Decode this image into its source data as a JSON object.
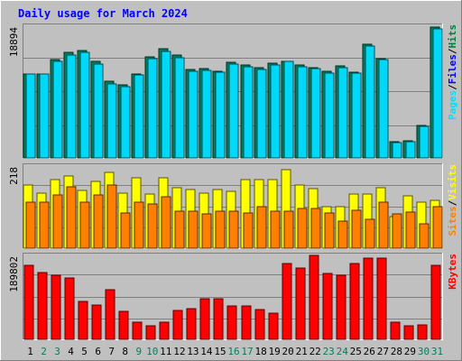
{
  "chart_data": {
    "type": "bar",
    "title": "Daily usage for March 2024",
    "categories": [
      "1",
      "2",
      "3",
      "4",
      "5",
      "6",
      "7",
      "8",
      "9",
      "10",
      "11",
      "12",
      "13",
      "14",
      "15",
      "16",
      "17",
      "18",
      "19",
      "20",
      "21",
      "22",
      "23",
      "24",
      "25",
      "26",
      "27",
      "28",
      "29",
      "30",
      "31"
    ],
    "weekend_days": [
      "2",
      "3",
      "9",
      "10",
      "16",
      "17",
      "23",
      "24",
      "30",
      "31"
    ],
    "panels": [
      {
        "name": "hits-files-pages",
        "ymax_label": "18894",
        "ymax": 18894,
        "legend": [
          "Pages",
          "Files",
          "Hits"
        ],
        "legend_separator": "/",
        "legend_colors": [
          "#00e0ff",
          "#0000ff",
          "#008040"
        ],
        "series": [
          {
            "name": "Hits",
            "color": "#00805c",
            "values": [
              12000,
              12000,
              14000,
              15000,
              15300,
              13700,
              10900,
              10400,
              11900,
              14400,
              15500,
              14600,
              12600,
              12700,
              12400,
              13600,
              13200,
              12800,
              13500,
              13800,
              13200,
              12800,
              12300,
              13100,
              12200,
              16200,
              14200,
              2300,
              2400,
              4600,
              18600
            ]
          },
          {
            "name": "Files",
            "color": "#00d8f8",
            "values": [
              11900,
              11900,
              13800,
              14700,
              15000,
              13400,
              10500,
              10100,
              11800,
              14100,
              15200,
              14300,
              12300,
              12500,
              12200,
              13400,
              13000,
              12600,
              13300,
              13700,
              13000,
              12700,
              12100,
              12900,
              12100,
              16000,
              14000,
              2200,
              2300,
              4500,
              18400
            ]
          }
        ]
      },
      {
        "name": "visits-sites",
        "ymax_label": "218",
        "ymax": 218,
        "legend": [
          "Sites",
          "Visits"
        ],
        "legend_separator": "/",
        "legend_colors": [
          "#ff8000",
          "#ffff00"
        ],
        "series": [
          {
            "name": "Visits",
            "color": "#ffff00",
            "values": [
              165,
              145,
              180,
              190,
              152,
              175,
              200,
              145,
              185,
              143,
              185,
              158,
              154,
              145,
              154,
              150,
              180,
              180,
              181,
              205,
              167,
              157,
              110,
              110,
              143,
              143,
              158,
              83,
              138,
              120,
              126
            ]
          },
          {
            "name": "Sites",
            "color": "#ff8000",
            "values": [
              122,
              120,
              140,
              162,
              122,
              140,
              165,
              93,
              120,
              115,
              135,
              97,
              97,
              90,
              97,
              97,
              92,
              110,
              97,
              97,
              105,
              105,
              92,
              72,
              100,
              75,
              120,
              90,
              95,
              64,
              110
            ]
          }
        ]
      },
      {
        "name": "kbytes",
        "ymax_label": "189802",
        "ymax": 189802,
        "legend": [
          "KBytes"
        ],
        "legend_separator": "/",
        "legend_colors": [
          "#ff0000"
        ],
        "series": [
          {
            "name": "KBytes",
            "color": "#ff0000",
            "values": [
              167000,
              152000,
              144000,
              139000,
              86000,
              78000,
              112000,
              64000,
              39000,
              31000,
              39000,
              65000,
              70000,
              92000,
              92000,
              76000,
              76000,
              67000,
              60000,
              172000,
              162000,
              190000,
              150000,
              145000,
              172000,
              183000,
              183000,
              38000,
              30000,
              33000,
              168000
            ]
          }
        ]
      }
    ]
  }
}
